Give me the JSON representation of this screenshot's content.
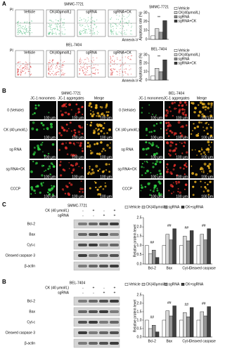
{
  "chart_data": [
    {
      "type": "bar",
      "title": "SMMC-7721",
      "y_label": "Apoptosis rate (%)",
      "categories": [
        null
      ],
      "series": [
        {
          "name": "Vehicle",
          "color": "#ffffff",
          "values": [
            4
          ]
        },
        {
          "name": "CK(40μmol/L)",
          "color": "#d9d9d9",
          "values": [
            12
          ]
        },
        {
          "name": "sgRNA",
          "color": "#969696",
          "values": [
            8
          ]
        },
        {
          "name": "sgRNA+CK",
          "color": "#404040",
          "values": [
            21
          ]
        }
      ],
      "ylim": [
        0,
        30
      ],
      "yticks": [
        0,
        10,
        20,
        30
      ],
      "annotation": "**"
    },
    {
      "type": "bar",
      "title": "BEL-7404",
      "y_label": "Apoptosis rate (%)",
      "categories": [
        null
      ],
      "series": [
        {
          "name": "Vehicle",
          "color": "#ffffff",
          "values": [
            5
          ]
        },
        {
          "name": "CK(40μmol/L)",
          "color": "#d9d9d9",
          "values": [
            14
          ]
        },
        {
          "name": "sgRNA",
          "color": "#969696",
          "values": [
            10
          ]
        },
        {
          "name": "sgRNA+CK",
          "color": "#404040",
          "values": [
            24
          ]
        }
      ],
      "ylim": [
        0,
        30
      ],
      "yticks": [
        0,
        10,
        20,
        30
      ],
      "annotation": "**"
    },
    {
      "type": "bar",
      "y_label": "Relative protein level",
      "categories": [
        "Bcl-2",
        "Bax",
        "Cyt-c",
        "Cleaved caspase 3"
      ],
      "series": [
        {
          "name": "Vehicle",
          "color": "#ffffff",
          "values": [
            1.0,
            1.0,
            1.0,
            1.0
          ]
        },
        {
          "name": "CK(40μmol/L)",
          "color": "#d9d9d9",
          "values": [
            0.55,
            1.6,
            1.5,
            1.6
          ]
        },
        {
          "name": "sgRNA",
          "color": "#969696",
          "values": [
            0.75,
            1.3,
            1.25,
            1.3
          ]
        },
        {
          "name": "CK+sgRNA",
          "color": "#404040",
          "values": [
            0.35,
            1.9,
            1.8,
            1.9
          ]
        }
      ],
      "ylim": [
        0,
        2.5
      ],
      "yticks": [
        {
          "value": 0,
          "label": "0.0"
        },
        {
          "value": 0.5,
          "label": "0.5"
        },
        {
          "value": 1,
          "label": "1.0"
        },
        {
          "value": 1.5,
          "label": "1.5"
        },
        {
          "value": 2,
          "label": "2.0"
        },
        {
          "value": 2.5,
          "label": "2.5"
        }
      ],
      "annotation": "##"
    },
    {
      "type": "bar",
      "y_label": "Relative protein level",
      "categories": [
        "Bcl-2",
        "Bax",
        "Cyt-c",
        "Cleaved caspase 3"
      ],
      "series": [
        {
          "name": "Vehicle",
          "color": "#ffffff",
          "values": [
            1.0,
            1.0,
            1.0,
            1.0
          ]
        },
        {
          "name": "CK(40μmol/L)",
          "color": "#d9d9d9",
          "values": [
            0.5,
            1.55,
            1.45,
            1.5
          ]
        },
        {
          "name": "sgRNA",
          "color": "#969696",
          "values": [
            0.7,
            1.25,
            1.2,
            1.25
          ]
        },
        {
          "name": "CK+sgRNA",
          "color": "#404040",
          "values": [
            0.3,
            1.85,
            1.75,
            1.8
          ]
        }
      ],
      "ylim": [
        0,
        2.5
      ],
      "yticks": [
        {
          "value": 0,
          "label": "0.0"
        },
        {
          "value": 0.5,
          "label": "0.5"
        },
        {
          "value": 1,
          "label": "1.0"
        },
        {
          "value": 1.5,
          "label": "1.5"
        },
        {
          "value": 2,
          "label": "2.0"
        },
        {
          "value": 2.5,
          "label": "2.5"
        }
      ],
      "annotation": "##"
    }
  ],
  "figure": {
    "panel_labels": [
      "A",
      "B",
      "C",
      "B"
    ],
    "flow": {
      "x_label": "Annexin-V",
      "y_label": "PI",
      "rows": [
        {
          "title": "SMMC-7721",
          "color": "#3cb371"
        },
        {
          "title": "BEL-7404",
          "color": "#d62728"
        }
      ],
      "columns": [
        "Vehicle",
        "CK(40μmol/L)",
        "sgRNA",
        "sgRNA+CK"
      ]
    },
    "jc1": {
      "blocks": [
        "SMMC-7721",
        "BEL-7404"
      ],
      "columns": [
        "JC-1 monomers",
        "JC-1 aggregates",
        "Merge"
      ],
      "rows": [
        "0 (Vehicle)",
        "CK (40 μmol/L)",
        "sg RNA",
        "sg RNA+CK",
        "CCCP"
      ],
      "scale": "100 μm"
    },
    "western": [
      {
        "title": "SMMC-7721",
        "treatments": [
          {
            "name": "CK (40 μmol/L)",
            "signs": [
              "-",
              "+",
              "-",
              "+"
            ]
          },
          {
            "name": "sgRNA",
            "signs": [
              "-",
              "-",
              "+",
              "+"
            ]
          }
        ],
        "proteins": [
          "Bcl-2",
          "Bax",
          "Cyt-c",
          "Cleaved caspase 3",
          "β-actin"
        ]
      },
      {
        "title": "BEL-7404",
        "treatments": [
          {
            "name": "CK (40 μmol/L)",
            "signs": [
              "-",
              "+",
              "-",
              "+"
            ]
          },
          {
            "name": "sgRNA",
            "signs": [
              "-",
              "-",
              "+",
              "+"
            ]
          }
        ],
        "proteins": [
          "Bcl-2",
          "Bax",
          "Cyt-c",
          "Cleaved caspase 3",
          "β-actin"
        ]
      }
    ]
  }
}
